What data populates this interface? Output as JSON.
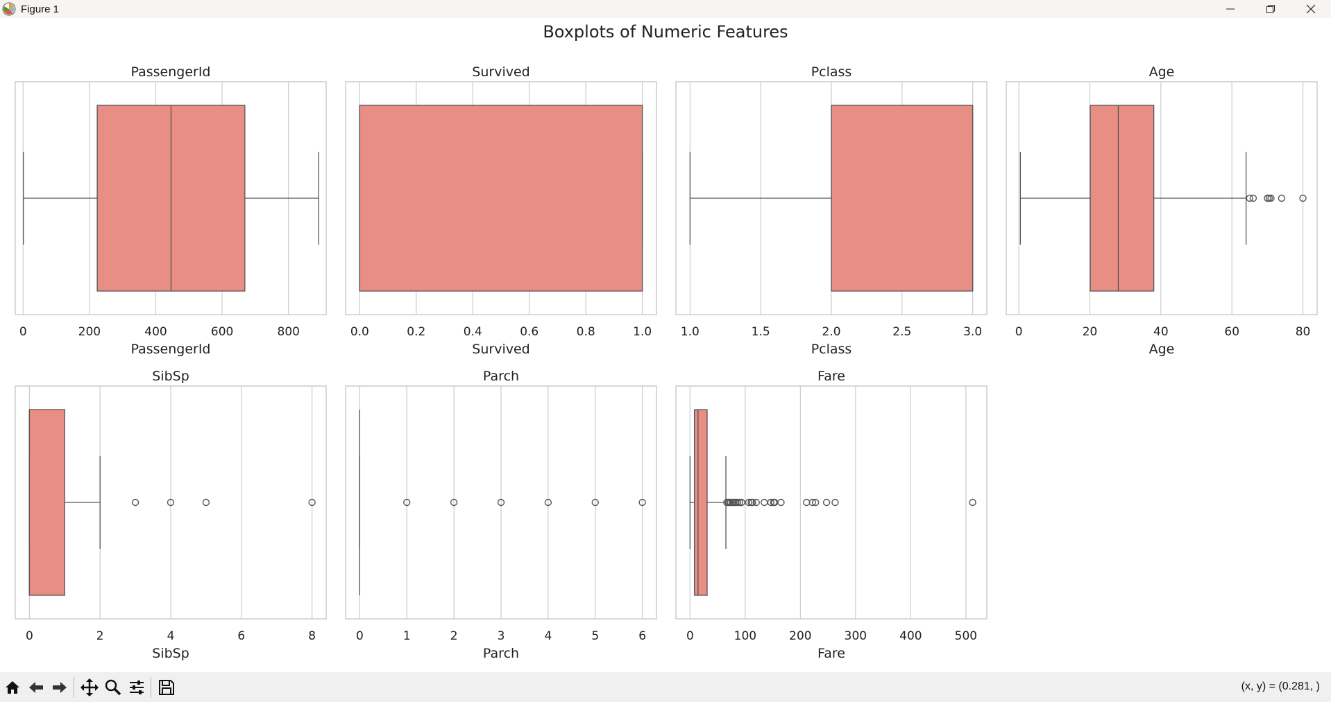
{
  "window": {
    "title": "Figure 1",
    "controls": [
      "minimize-icon",
      "restore-icon",
      "close-icon"
    ]
  },
  "figure": {
    "suptitle": "Boxplots of Numeric Features"
  },
  "colors": {
    "box_fill": "#e88e84",
    "box_edge": "#555555",
    "grid": "#cccccc",
    "spine": "#cccccc",
    "flier_edge": "#555555",
    "text": "#222222"
  },
  "chart_data": [
    {
      "type": "box",
      "title": "PassengerId",
      "xlabel": "PassengerId",
      "xlim": [
        -23.5,
        913.5
      ],
      "ticks": [
        0,
        200,
        400,
        600,
        800
      ],
      "tick_labels": [
        "0",
        "200",
        "400",
        "600",
        "800"
      ],
      "stats": {
        "whislo": 1,
        "q1": 223.5,
        "med": 446,
        "q3": 668.5,
        "whishi": 891
      },
      "fliers": [],
      "grid": true
    },
    {
      "type": "box",
      "title": "Survived",
      "xlabel": "Survived",
      "xlim": [
        -0.05,
        1.05
      ],
      "ticks": [
        0.0,
        0.2,
        0.4,
        0.6,
        0.8,
        1.0
      ],
      "tick_labels": [
        "0.0",
        "0.2",
        "0.4",
        "0.6",
        "0.8",
        "1.0"
      ],
      "stats": {
        "whislo": 0,
        "q1": 0,
        "med": 0,
        "q3": 1,
        "whishi": 1
      },
      "fliers": [],
      "grid": true
    },
    {
      "type": "box",
      "title": "Pclass",
      "xlabel": "Pclass",
      "xlim": [
        0.9,
        3.1
      ],
      "ticks": [
        1.0,
        1.5,
        2.0,
        2.5,
        3.0
      ],
      "tick_labels": [
        "1.0",
        "1.5",
        "2.0",
        "2.5",
        "3.0"
      ],
      "stats": {
        "whislo": 1,
        "q1": 2,
        "med": 3,
        "q3": 3,
        "whishi": 3
      },
      "fliers": [],
      "grid": true
    },
    {
      "type": "box",
      "title": "Age",
      "xlabel": "Age",
      "xlim": [
        -3.56,
        84.0
      ],
      "ticks": [
        0,
        20,
        40,
        60,
        80
      ],
      "tick_labels": [
        "0",
        "20",
        "40",
        "60",
        "80"
      ],
      "stats": {
        "whislo": 0.42,
        "q1": 20.1,
        "med": 28,
        "q3": 38,
        "whishi": 64
      },
      "fliers": [
        65,
        66,
        70,
        70.5,
        71,
        74,
        80
      ],
      "grid": true
    },
    {
      "type": "box",
      "title": "SibSp",
      "xlabel": "SibSp",
      "xlim": [
        -0.4,
        8.4
      ],
      "ticks": [
        0,
        2,
        4,
        6,
        8
      ],
      "tick_labels": [
        "0",
        "2",
        "4",
        "6",
        "8"
      ],
      "stats": {
        "whislo": 0,
        "q1": 0,
        "med": 0,
        "q3": 1,
        "whishi": 2
      },
      "fliers": [
        3,
        4,
        5,
        8
      ],
      "grid": true
    },
    {
      "type": "box",
      "title": "Parch",
      "xlabel": "Parch",
      "xlim": [
        -0.3,
        6.3
      ],
      "ticks": [
        0,
        1,
        2,
        3,
        4,
        5,
        6
      ],
      "tick_labels": [
        "0",
        "1",
        "2",
        "3",
        "4",
        "5",
        "6"
      ],
      "stats": {
        "whislo": 0,
        "q1": 0,
        "med": 0,
        "q3": 0,
        "whishi": 0
      },
      "fliers": [
        1,
        2,
        3,
        4,
        5,
        6
      ],
      "grid": true
    },
    {
      "type": "box",
      "title": "Fare",
      "xlabel": "Fare",
      "xlim": [
        -25.6,
        537.9
      ],
      "ticks": [
        0,
        100,
        200,
        300,
        400,
        500
      ],
      "tick_labels": [
        "0",
        "100",
        "200",
        "300",
        "400",
        "500"
      ],
      "stats": {
        "whislo": 0,
        "q1": 7.9,
        "med": 14.5,
        "q3": 31,
        "whishi": 65
      },
      "fliers": [
        66.6,
        69.3,
        71,
        73.5,
        76.7,
        77.3,
        79.2,
        82.2,
        83.2,
        86.5,
        90,
        93.5,
        106.4,
        110.9,
        113.3,
        120,
        134.5,
        146.5,
        151.6,
        153.5,
        164.9,
        211.3,
        221.8,
        227.5,
        247.5,
        263,
        512.3
      ],
      "grid": true
    }
  ],
  "toolbar": {
    "buttons": [
      "home-icon",
      "back-icon",
      "forward-icon",
      "pan-icon",
      "zoom-icon",
      "configure-subplots-icon",
      "save-icon"
    ],
    "coord_text": "(x, y) = (0.281, )"
  }
}
